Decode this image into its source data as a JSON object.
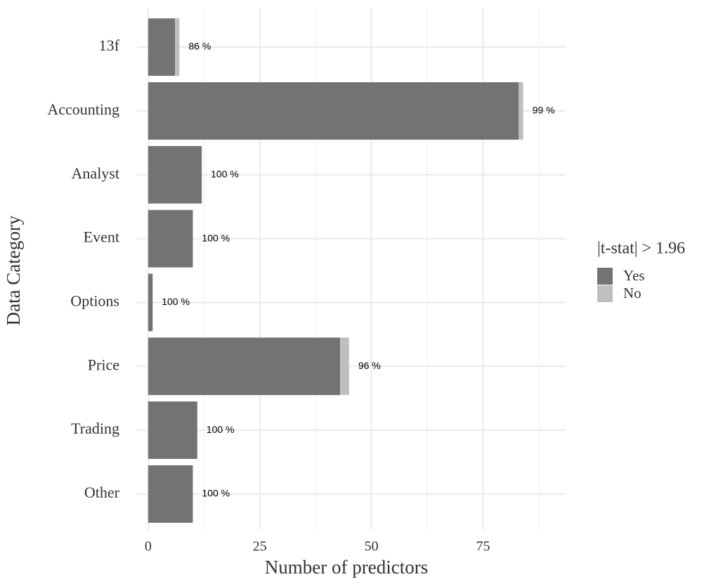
{
  "chart_data": {
    "type": "stacked_barh",
    "xlabel": "Number of predictors",
    "ylabel": "Data Category",
    "categories": [
      "13f",
      "Accounting",
      "Analyst",
      "Event",
      "Options",
      "Price",
      "Trading",
      "Other"
    ],
    "series": [
      {
        "name": "Yes",
        "color": "#737373",
        "values": [
          6,
          83,
          12,
          10,
          1,
          43,
          11,
          10
        ]
      },
      {
        "name": "No",
        "color": "#bfbfbf",
        "values": [
          1,
          1,
          0,
          0,
          0,
          2,
          0,
          0
        ]
      }
    ],
    "percent_labels": {
      "values": [
        86,
        99,
        100,
        100,
        100,
        96,
        100,
        100
      ],
      "value_labels": [
        "86 %",
        "99 %",
        "100 %",
        "100 %",
        "100 %",
        "96 %",
        "100 %",
        "100 %"
      ]
    },
    "legend_title": "|t-stat| > 1.96",
    "legend": "right",
    "xlim": [
      -2.5,
      93.5
    ],
    "xticks": [
      0,
      25,
      50,
      75
    ],
    "xminor": [
      12.5,
      37.5,
      62.5,
      87.5
    ],
    "grid": true
  }
}
